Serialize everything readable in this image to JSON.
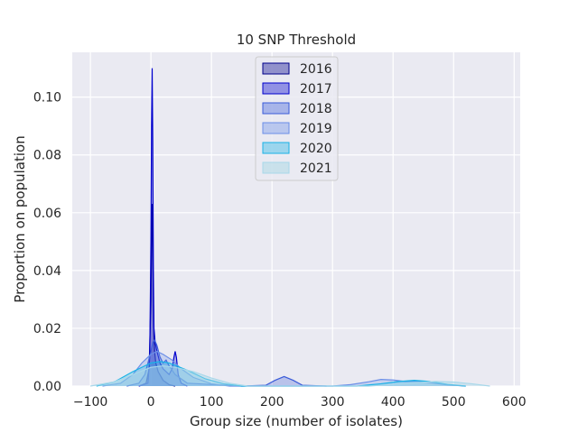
{
  "chart_data": {
    "type": "area",
    "subtype": "kde",
    "title": "10 SNP Threshold",
    "xlabel": "Group size (number of isolates)",
    "ylabel": "Proportion on population",
    "xlim": [
      -130,
      610
    ],
    "ylim": [
      0,
      0.1155
    ],
    "xticks": [
      -100,
      0,
      100,
      200,
      300,
      400,
      500,
      600
    ],
    "yticks": [
      0.0,
      0.02,
      0.04,
      0.06,
      0.08,
      0.1
    ],
    "ytick_labels": [
      "0.00",
      "0.02",
      "0.04",
      "0.06",
      "0.08",
      "0.10"
    ],
    "grid": true,
    "legend_position": "upper-center",
    "series": [
      {
        "name": "2016",
        "color": "#00008b",
        "fill": "#00008b",
        "fill_opacity": 0.28,
        "x": [
          -20,
          -8,
          -3,
          0,
          1,
          2,
          3,
          4,
          5,
          6,
          8,
          12,
          20,
          30,
          40
        ],
        "y": [
          0,
          0.001,
          0.006,
          0.03,
          0.05,
          0.063,
          0.05,
          0.03,
          0.018,
          0.012,
          0.008,
          0.005,
          0.002,
          0.0005,
          0
        ]
      },
      {
        "name": "2017",
        "color": "#0000cd",
        "fill": "#0000cd",
        "fill_opacity": 0.28,
        "x": [
          -20,
          -5,
          -2,
          0,
          1,
          2,
          3,
          4,
          5,
          7,
          10,
          15,
          20,
          25,
          30,
          35,
          38,
          40,
          42,
          45,
          50,
          60
        ],
        "y": [
          0,
          0.001,
          0.01,
          0.05,
          0.09,
          0.11,
          0.085,
          0.04,
          0.02,
          0.015,
          0.012,
          0.008,
          0.006,
          0.005,
          0.004,
          0.006,
          0.01,
          0.012,
          0.01,
          0.004,
          0.001,
          0
        ]
      },
      {
        "name": "2018",
        "color": "#3a5bd9",
        "fill": "#3a5bd9",
        "fill_opacity": 0.28,
        "x": [
          -40,
          -20,
          -10,
          -5,
          0,
          3,
          6,
          10,
          15,
          20,
          25,
          30,
          40,
          60,
          150,
          190,
          205,
          220,
          235,
          250,
          290
        ],
        "y": [
          0,
          0.001,
          0.004,
          0.008,
          0.012,
          0.015,
          0.016,
          0.014,
          0.01,
          0.008,
          0.009,
          0.007,
          0.004,
          0.001,
          0,
          0.0003,
          0.002,
          0.0033,
          0.002,
          0.0003,
          0
        ]
      },
      {
        "name": "2019",
        "color": "#6a8ee8",
        "fill": "#6a8ee8",
        "fill_opacity": 0.28,
        "x": [
          -80,
          -50,
          -30,
          -15,
          0,
          10,
          20,
          35,
          50,
          70,
          100,
          130,
          300,
          330,
          360,
          380,
          400,
          420,
          440,
          460,
          490,
          520
        ],
        "y": [
          0,
          0.001,
          0.004,
          0.008,
          0.011,
          0.012,
          0.011,
          0.009,
          0.006,
          0.003,
          0.0008,
          0,
          0,
          0.0005,
          0.0015,
          0.0023,
          0.0021,
          0.0016,
          0.0017,
          0.0012,
          0.0004,
          0
        ]
      },
      {
        "name": "2020",
        "color": "#19b2e6",
        "fill": "#19b2e6",
        "fill_opacity": 0.28,
        "x": [
          -90,
          -60,
          -30,
          0,
          15,
          30,
          60,
          90,
          120,
          150,
          340,
          380,
          410,
          435,
          460,
          490,
          520
        ],
        "y": [
          0,
          0.0015,
          0.005,
          0.008,
          0.0085,
          0.008,
          0.0055,
          0.0025,
          0.0008,
          0,
          0,
          0.0008,
          0.0016,
          0.002,
          0.0016,
          0.0006,
          0
        ]
      },
      {
        "name": "2021",
        "color": "#a8d8ea",
        "fill": "#add8e6",
        "fill_opacity": 0.45,
        "x": [
          -100,
          -60,
          -30,
          0,
          20,
          40,
          70,
          100,
          130,
          160,
          360,
          400,
          440,
          470,
          500,
          530,
          560
        ],
        "y": [
          0,
          0.0015,
          0.004,
          0.0065,
          0.007,
          0.0065,
          0.005,
          0.0028,
          0.001,
          0,
          0,
          0.0006,
          0.0012,
          0.0016,
          0.0014,
          0.0008,
          0
        ]
      }
    ]
  }
}
